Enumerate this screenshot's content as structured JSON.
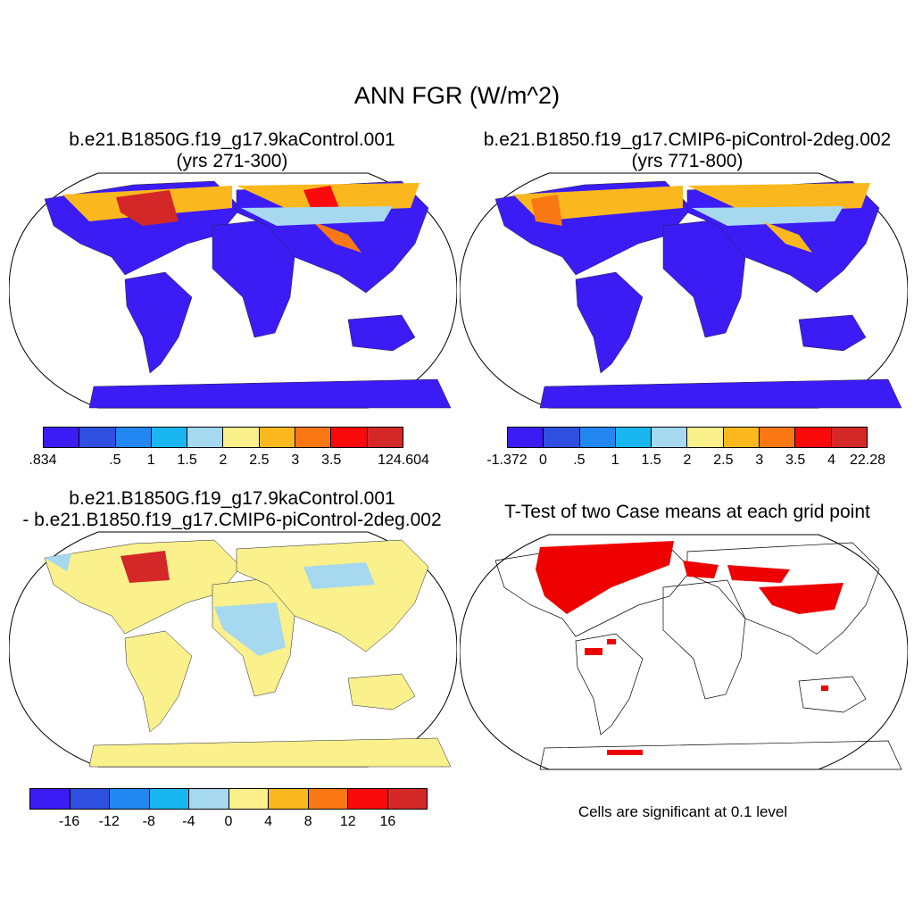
{
  "title": "ANN FGR (W/m^2)",
  "panels": {
    "p1": {
      "line1": "b.e21.B1850G.f19_g17.9kaControl.001",
      "line2": "(yrs 271-300)"
    },
    "p2": {
      "line1": "b.e21.B1850.f19_g17.CMIP6-piControl-2deg.002",
      "line2": "(yrs 771-800)"
    },
    "p3": {
      "line1": "b.e21.B1850G.f19_g17.9kaControl.001",
      "line2": "- b.e21.B1850.f19_g17.CMIP6-piControl-2deg.002"
    },
    "p4": {
      "line1": "T-Test of two Case means at each grid point",
      "note": "Cells are significant at 0.1 level"
    }
  },
  "colorbars": {
    "cb1": {
      "colors": [
        "#3b1cf5",
        "#2f4fe0",
        "#2288f0",
        "#1ab6f0",
        "#a6d8f0",
        "#faf08c",
        "#fab81e",
        "#fa7814",
        "#fa0a0a",
        "#d42828"
      ],
      "ticks": [
        ".834 ",
        ".5",
        "1",
        "1.5",
        "2",
        "2.5",
        "3",
        "3.5",
        "124.604"
      ]
    },
    "cb2": {
      "colors": [
        "#3b1cf5",
        "#2f4fe0",
        "#2288f0",
        "#1ab6f0",
        "#a6d8f0",
        "#faf08c",
        "#fab81e",
        "#fa7814",
        "#fa0a0a",
        "#d42828"
      ],
      "ticks": [
        "-1.372",
        "0",
        ".5",
        "1",
        "1.5",
        "2",
        "2.5",
        "3",
        "3.5",
        "4",
        "22.28"
      ]
    },
    "cb3": {
      "colors": [
        "#3b1cf5",
        "#2f4fe0",
        "#2288f0",
        "#1ab6f0",
        "#a6d8f0",
        "#faf08c",
        "#fab81e",
        "#fa7814",
        "#fa0a0a",
        "#d42828"
      ],
      "ticks": [
        "-16",
        "-12",
        "-8",
        "-4",
        "0",
        "4",
        "8",
        "12",
        "16"
      ]
    }
  }
}
